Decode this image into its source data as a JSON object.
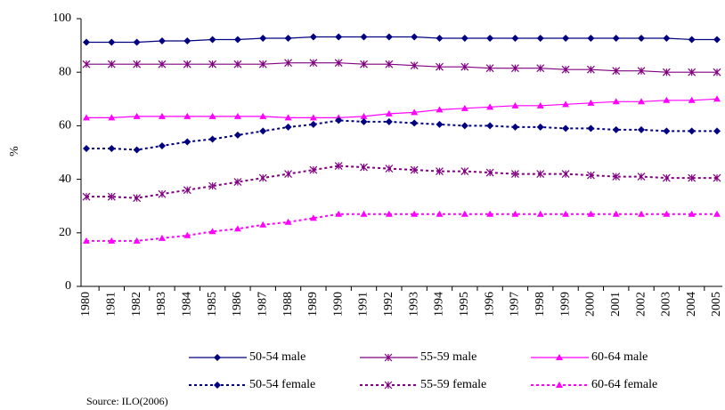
{
  "chart_data": {
    "type": "line",
    "y_label": "%",
    "source": "Source: ILO(2006)",
    "categories": [
      "1980",
      "1981",
      "1982",
      "1983",
      "1984",
      "1985",
      "1986",
      "1987",
      "1988",
      "1989",
      "1990",
      "1991",
      "1992",
      "1993",
      "1994",
      "1995",
      "1996",
      "1997",
      "1998",
      "1999",
      "2000",
      "2001",
      "2002",
      "2003",
      "2004",
      "2005"
    ],
    "ylim": [
      0,
      100
    ],
    "yticks": [
      0,
      20,
      40,
      60,
      80,
      100
    ],
    "series": [
      {
        "name": "50-54 male",
        "color": "#000080",
        "marker": "diamond",
        "linestyle": "solid",
        "values": [
          91.2,
          91.2,
          91.2,
          91.7,
          91.7,
          92.2,
          92.2,
          92.7,
          92.7,
          93.2,
          93.2,
          93.2,
          93.2,
          93.2,
          92.7,
          92.7,
          92.7,
          92.7,
          92.7,
          92.7,
          92.7,
          92.7,
          92.7,
          92.7,
          92.2,
          92.2
        ]
      },
      {
        "name": "55-59 male",
        "color": "#800080",
        "marker": "star",
        "linestyle": "solid",
        "values": [
          83,
          83,
          83,
          83,
          83,
          83,
          83,
          83,
          83.5,
          83.5,
          83.5,
          83,
          83,
          82.5,
          82,
          82,
          81.5,
          81.5,
          81.5,
          81,
          81,
          80.5,
          80.5,
          80,
          80,
          80
        ]
      },
      {
        "name": "60-64 male",
        "color": "#ff00ff",
        "marker": "triangle",
        "linestyle": "solid",
        "values": [
          63,
          63,
          63.5,
          63.5,
          63.5,
          63.5,
          63.5,
          63.5,
          63,
          63,
          63,
          63.5,
          64.5,
          65,
          66,
          66.5,
          67,
          67.5,
          67.5,
          68,
          68.5,
          69,
          69,
          69.5,
          69.5,
          70
        ]
      },
      {
        "name": "50-54 female",
        "color": "#000080",
        "marker": "diamond",
        "linestyle": "dotted",
        "values": [
          51.5,
          51.5,
          51,
          52.5,
          54,
          55,
          56.5,
          58,
          59.5,
          60.5,
          62,
          61.5,
          61.5,
          61,
          60.5,
          60,
          60,
          59.5,
          59.5,
          59,
          59,
          58.5,
          58.5,
          58,
          58,
          58
        ]
      },
      {
        "name": "55-59 female",
        "color": "#800080",
        "marker": "star",
        "linestyle": "dotted",
        "values": [
          33.5,
          33.5,
          33,
          34.5,
          36,
          37.5,
          39,
          40.5,
          42,
          43.5,
          45,
          44.5,
          44,
          43.5,
          43,
          43,
          42.5,
          42,
          42,
          42,
          41.5,
          41,
          41,
          40.5,
          40.5,
          40.5
        ]
      },
      {
        "name": "60-64 female",
        "color": "#ff00ff",
        "marker": "triangle",
        "linestyle": "dotted",
        "values": [
          17,
          17,
          17,
          18,
          19,
          20.5,
          21.5,
          23,
          24,
          25.5,
          27,
          27,
          27,
          27,
          27,
          27,
          27,
          27,
          27,
          27,
          27,
          27,
          27,
          27,
          27,
          27
        ]
      }
    ]
  }
}
